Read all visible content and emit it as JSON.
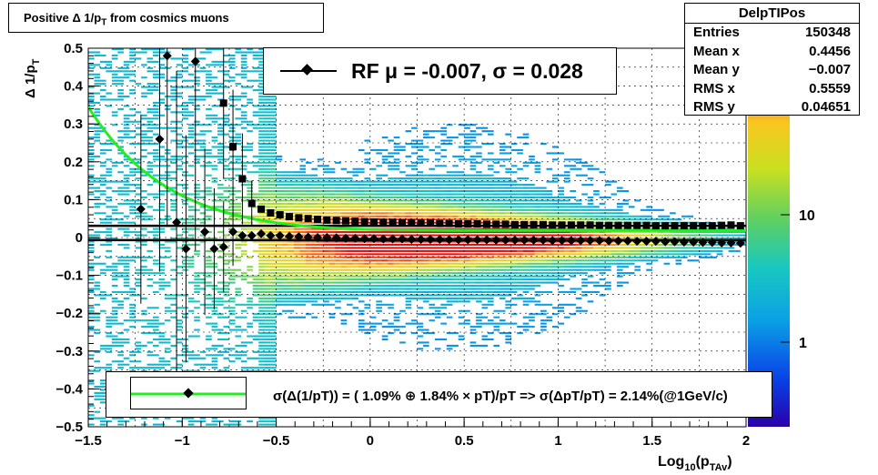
{
  "title": {
    "main": "Positive Δ 1/p",
    "sub": "T",
    "rest": " from cosmics muons"
  },
  "stats": {
    "name": "DelpTIPos",
    "rows": [
      {
        "label": "Entries",
        "value": "150348"
      },
      {
        "label": "Mean x",
        "value": "0.4456"
      },
      {
        "label": "Mean y",
        "value": "−0.007"
      },
      {
        "label": "RMS x",
        "value": "0.5559"
      },
      {
        "label": "RMS y",
        "value": "0.04651"
      }
    ]
  },
  "fit_legend": {
    "text": "RF μ = -0.007, σ =   0.028"
  },
  "resolution_legend": {
    "text": "σ(Δ(1/pT)) = ( 1.09% ⊕  1.84% × pT)/pT => σ(ΔpT/pT) =  2.14%(@1GeV/c)"
  },
  "colors": {
    "green_curve": "#22ee22",
    "marker": "#000000"
  },
  "chart_data": {
    "type": "heatmap",
    "title": "Positive Δ 1/p_T from cosmics muons",
    "xlabel": "Log_10(p_TAv)",
    "ylabel": "Δ 1/p_T",
    "xlim": [
      -1.5,
      2
    ],
    "ylim": [
      -0.5,
      0.5
    ],
    "x_ticks": [
      "−1.5",
      "−1",
      "−0.5",
      "0",
      "0.5",
      "1",
      "1.5",
      "2"
    ],
    "y_ticks": [
      "0.5",
      "0.4",
      "0.3",
      "0.2",
      "0.1",
      "0",
      "−0.1",
      "−0.2",
      "−0.3",
      "−0.4",
      "−0.5"
    ],
    "colorbar": {
      "scale": "log",
      "ticks": [
        "10",
        "1"
      ]
    },
    "grid": true,
    "mean_points": {
      "x": [
        -1.22,
        -1.12,
        -1.08,
        -1.03,
        -0.98,
        -0.93,
        -0.88,
        -0.83,
        -0.78,
        -0.73,
        -0.68,
        -0.63,
        -0.58,
        -0.53,
        -0.48,
        -0.43,
        -0.38,
        -0.33,
        -0.28,
        -0.23,
        -0.18,
        -0.13,
        -0.08,
        -0.03,
        0.02,
        0.07,
        0.12,
        0.17,
        0.22,
        0.27,
        0.32,
        0.37,
        0.42,
        0.47,
        0.52,
        0.57,
        0.62,
        0.67,
        0.72,
        0.77,
        0.82,
        0.87,
        0.92,
        0.97,
        1.02,
        1.07,
        1.12,
        1.17,
        1.22,
        1.27,
        1.32,
        1.37,
        1.42,
        1.47,
        1.52,
        1.57,
        1.62,
        1.67,
        1.72,
        1.77,
        1.82,
        1.87,
        1.92,
        1.97
      ],
      "y": [
        0.075,
        0.26,
        0.48,
        0.04,
        -0.03,
        0.465,
        0.015,
        -0.03,
        -0.025,
        0.015,
        0.005,
        0.005,
        0.01,
        0.005,
        0.005,
        0.003,
        0.002,
        0.001,
        0.0,
        0.0,
        -0.001,
        -0.002,
        -0.002,
        -0.003,
        -0.003,
        -0.004,
        -0.004,
        -0.004,
        -0.005,
        -0.005,
        -0.005,
        -0.005,
        -0.006,
        -0.006,
        -0.006,
        -0.006,
        -0.006,
        -0.007,
        -0.007,
        -0.007,
        -0.007,
        -0.007,
        -0.007,
        -0.008,
        -0.008,
        -0.008,
        -0.008,
        -0.008,
        -0.008,
        -0.009,
        -0.009,
        -0.009,
        -0.01,
        -0.01,
        -0.01,
        -0.011,
        -0.011,
        -0.012,
        -0.012,
        -0.013,
        -0.013,
        -0.014,
        -0.014,
        -0.015
      ],
      "err": [
        0.25,
        0.35,
        0.45,
        0.4,
        0.3,
        0.5,
        0.22,
        0.16,
        0.12,
        0.09,
        0.0,
        0.0,
        0.0,
        0.0,
        0.0,
        0.0,
        0.0,
        0.0,
        0.0,
        0.0,
        0.0,
        0.0,
        0.0,
        0.0,
        0.0,
        0.0,
        0.0,
        0.0,
        0.0,
        0.0,
        0.0,
        0.0,
        0.0,
        0.0,
        0.0,
        0.0,
        0.0,
        0.0,
        0.0,
        0.0,
        0.0,
        0.0,
        0.0,
        0.0,
        0.0,
        0.0,
        0.0,
        0.0,
        0.0,
        0.0,
        0.0,
        0.0,
        0.0,
        0.0,
        0.0,
        0.0,
        0.0,
        0.0,
        0.0,
        0.0,
        0.0,
        0.0,
        0.0,
        0.0
      ]
    },
    "sigma_points": {
      "x": [
        -0.78,
        -0.73,
        -0.68,
        -0.63,
        -0.58,
        -0.53,
        -0.48,
        -0.43,
        -0.38,
        -0.33,
        -0.28,
        -0.23,
        -0.18,
        -0.13,
        -0.08,
        -0.03,
        0.02,
        0.07,
        0.12,
        0.17,
        0.22,
        0.27,
        0.32,
        0.37,
        0.42,
        0.47,
        0.52,
        0.57,
        0.62,
        0.67,
        0.72,
        0.77,
        0.82,
        0.87,
        0.92,
        0.97,
        1.02,
        1.07,
        1.12,
        1.17,
        1.22,
        1.27,
        1.32,
        1.37,
        1.42,
        1.47,
        1.52,
        1.57,
        1.62,
        1.67,
        1.72,
        1.77,
        1.82,
        1.87,
        1.92,
        1.97
      ],
      "y": [
        0.355,
        0.24,
        0.155,
        0.09,
        0.075,
        0.065,
        0.06,
        0.055,
        0.052,
        0.05,
        0.048,
        0.046,
        0.045,
        0.044,
        0.043,
        0.042,
        0.041,
        0.04,
        0.04,
        0.039,
        0.039,
        0.038,
        0.038,
        0.037,
        0.037,
        0.036,
        0.036,
        0.036,
        0.035,
        0.035,
        0.035,
        0.034,
        0.034,
        0.034,
        0.034,
        0.033,
        0.033,
        0.033,
        0.033,
        0.033,
        0.032,
        0.032,
        0.032,
        0.032,
        0.032,
        0.032,
        0.031,
        0.031,
        0.031,
        0.031,
        0.031,
        0.031,
        0.031,
        0.032,
        0.033,
        0.031
      ],
      "err": [
        0.2,
        0.15,
        0.12,
        0.06,
        0.0,
        0.0,
        0.0,
        0.0,
        0.0,
        0.0,
        0.0,
        0.0,
        0.0,
        0.0,
        0.0,
        0.0,
        0.0,
        0.0,
        0.0,
        0.0,
        0.0,
        0.0,
        0.0,
        0.0,
        0.0,
        0.0,
        0.0,
        0.0,
        0.0,
        0.0,
        0.0,
        0.0,
        0.0,
        0.0,
        0.0,
        0.0,
        0.0,
        0.0,
        0.0,
        0.0,
        0.0,
        0.0,
        0.0,
        0.0,
        0.0,
        0.0,
        0.0,
        0.0,
        0.0,
        0.0,
        0.0,
        0.0,
        0.0,
        0.0,
        0.0,
        0.0
      ]
    },
    "resolution_curve": {
      "a_percent": 1.09,
      "b_percent": 1.84,
      "formula": "sqrt(a^2 + (b*pT)^2)/pT"
    },
    "fit": {
      "mu": -0.007,
      "sigma": 0.028
    }
  }
}
